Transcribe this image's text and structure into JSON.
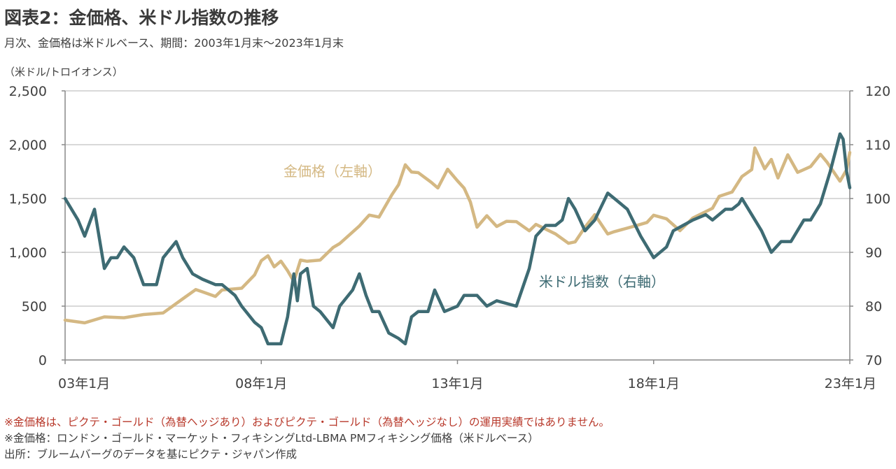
{
  "header": {
    "title": "図表2：金価格、米ドル指数の推移",
    "subtitle": "月次、金価格は米ドルベース、期間：2003年1月末～2023年1月末",
    "unit_label": "（米ドル/トロイオンス）"
  },
  "notes": {
    "note1": "※金価格は、ピクテ・ゴールド（為替ヘッジあり）およびピクテ・ゴールド（為替ヘッジなし）の運用実績ではありません。",
    "note2": "※金価格：ロンドン・ゴールド・マーケット・フィキシングLtd-LBMA PMフィキシング価格（米ドルベース）",
    "note3": "出所：ブルームバーグのデータを基にピクテ・ジャパン作成"
  },
  "colors": {
    "gold": "#d4b883",
    "usd": "#3e6b73",
    "grid": "#d9d9d9",
    "axis": "#888888",
    "note_red": "#b8392b"
  },
  "chart_data": {
    "type": "line",
    "x_ticks": [
      "03年1月",
      "08年1月",
      "13年1月",
      "18年1月",
      "23年1月"
    ],
    "left_axis": {
      "ticks": [
        "0",
        "500",
        "1,000",
        "1,500",
        "2,000",
        "2,500"
      ],
      "ylim": [
        0,
        2500
      ]
    },
    "right_axis": {
      "ticks": [
        "70",
        "80",
        "90",
        "100",
        "110",
        "120"
      ],
      "ylim": [
        70,
        120
      ]
    },
    "grid": true,
    "series": [
      {
        "name": "金価格（左軸）",
        "axis": "left",
        "values": [
          [
            2003.0,
            370
          ],
          [
            2003.5,
            345
          ],
          [
            2004.0,
            400
          ],
          [
            2004.5,
            392
          ],
          [
            2005.0,
            422
          ],
          [
            2005.5,
            437
          ],
          [
            2006.0,
            568
          ],
          [
            2006.33,
            654
          ],
          [
            2006.5,
            633
          ],
          [
            2006.83,
            590
          ],
          [
            2007.0,
            650
          ],
          [
            2007.5,
            666
          ],
          [
            2007.83,
            790
          ],
          [
            2008.0,
            923
          ],
          [
            2008.17,
            968
          ],
          [
            2008.33,
            865
          ],
          [
            2008.5,
            918
          ],
          [
            2008.67,
            830
          ],
          [
            2008.83,
            730
          ],
          [
            2009.0,
            928
          ],
          [
            2009.17,
            917
          ],
          [
            2009.5,
            928
          ],
          [
            2009.83,
            1045
          ],
          [
            2010.0,
            1081
          ],
          [
            2010.5,
            1245
          ],
          [
            2010.75,
            1346
          ],
          [
            2011.0,
            1327
          ],
          [
            2011.33,
            1536
          ],
          [
            2011.5,
            1628
          ],
          [
            2011.67,
            1813
          ],
          [
            2011.83,
            1746
          ],
          [
            2012.0,
            1740
          ],
          [
            2012.33,
            1651
          ],
          [
            2012.5,
            1598
          ],
          [
            2012.75,
            1772
          ],
          [
            2013.0,
            1664
          ],
          [
            2013.17,
            1597
          ],
          [
            2013.33,
            1467
          ],
          [
            2013.5,
            1234
          ],
          [
            2013.75,
            1340
          ],
          [
            2014.0,
            1240
          ],
          [
            2014.25,
            1288
          ],
          [
            2014.5,
            1285
          ],
          [
            2014.83,
            1200
          ],
          [
            2015.0,
            1260
          ],
          [
            2015.5,
            1171
          ],
          [
            2015.83,
            1084
          ],
          [
            2016.0,
            1097
          ],
          [
            2016.25,
            1233
          ],
          [
            2016.5,
            1350
          ],
          [
            2016.83,
            1171
          ],
          [
            2017.0,
            1192
          ],
          [
            2017.5,
            1242
          ],
          [
            2017.83,
            1277
          ],
          [
            2018.0,
            1345
          ],
          [
            2018.33,
            1311
          ],
          [
            2018.67,
            1201
          ],
          [
            2019.0,
            1319
          ],
          [
            2019.5,
            1409
          ],
          [
            2019.67,
            1520
          ],
          [
            2020.0,
            1560
          ],
          [
            2020.25,
            1704
          ],
          [
            2020.5,
            1768
          ],
          [
            2020.58,
            1970
          ],
          [
            2020.83,
            1776
          ],
          [
            2021.0,
            1863
          ],
          [
            2021.17,
            1691
          ],
          [
            2021.42,
            1906
          ],
          [
            2021.67,
            1743
          ],
          [
            2022.0,
            1797
          ],
          [
            2022.25,
            1911
          ],
          [
            2022.42,
            1837
          ],
          [
            2022.75,
            1661
          ],
          [
            2022.92,
            1768
          ],
          [
            2023.0,
            1928
          ]
        ]
      },
      {
        "name": "米ドル指数（右軸）",
        "axis": "right",
        "values": [
          [
            2003.0,
            100
          ],
          [
            2003.33,
            96
          ],
          [
            2003.5,
            93
          ],
          [
            2003.75,
            98
          ],
          [
            2004.0,
            87
          ],
          [
            2004.17,
            89
          ],
          [
            2004.33,
            89
          ],
          [
            2004.5,
            91
          ],
          [
            2004.75,
            89
          ],
          [
            2005.0,
            84
          ],
          [
            2005.33,
            84
          ],
          [
            2005.5,
            89
          ],
          [
            2005.83,
            92
          ],
          [
            2006.0,
            89
          ],
          [
            2006.25,
            86
          ],
          [
            2006.5,
            85
          ],
          [
            2006.83,
            84
          ],
          [
            2007.0,
            84
          ],
          [
            2007.33,
            82
          ],
          [
            2007.5,
            80
          ],
          [
            2007.83,
            77
          ],
          [
            2008.0,
            76
          ],
          [
            2008.17,
            73
          ],
          [
            2008.33,
            73
          ],
          [
            2008.5,
            73
          ],
          [
            2008.67,
            78
          ],
          [
            2008.83,
            86
          ],
          [
            2008.92,
            81
          ],
          [
            2009.0,
            86
          ],
          [
            2009.17,
            87
          ],
          [
            2009.33,
            80
          ],
          [
            2009.5,
            79
          ],
          [
            2009.83,
            76
          ],
          [
            2010.0,
            80
          ],
          [
            2010.33,
            83
          ],
          [
            2010.5,
            86
          ],
          [
            2010.67,
            82
          ],
          [
            2010.83,
            79
          ],
          [
            2011.0,
            79
          ],
          [
            2011.25,
            75
          ],
          [
            2011.5,
            74
          ],
          [
            2011.67,
            73
          ],
          [
            2011.83,
            78
          ],
          [
            2012.0,
            79
          ],
          [
            2012.25,
            79
          ],
          [
            2012.42,
            83
          ],
          [
            2012.67,
            79
          ],
          [
            2013.0,
            80
          ],
          [
            2013.17,
            82
          ],
          [
            2013.5,
            82
          ],
          [
            2013.75,
            80
          ],
          [
            2014.0,
            81
          ],
          [
            2014.5,
            80
          ],
          [
            2014.83,
            87
          ],
          [
            2015.0,
            93
          ],
          [
            2015.25,
            95
          ],
          [
            2015.5,
            95
          ],
          [
            2015.67,
            96
          ],
          [
            2015.83,
            100
          ],
          [
            2016.0,
            98
          ],
          [
            2016.25,
            94
          ],
          [
            2016.5,
            96
          ],
          [
            2016.83,
            101
          ],
          [
            2017.0,
            100
          ],
          [
            2017.33,
            98
          ],
          [
            2017.67,
            93
          ],
          [
            2018.0,
            89
          ],
          [
            2018.33,
            91
          ],
          [
            2018.5,
            94
          ],
          [
            2018.75,
            95
          ],
          [
            2019.0,
            96
          ],
          [
            2019.33,
            97
          ],
          [
            2019.5,
            96
          ],
          [
            2019.83,
            98
          ],
          [
            2020.0,
            98
          ],
          [
            2020.17,
            99
          ],
          [
            2020.25,
            100
          ],
          [
            2020.5,
            97
          ],
          [
            2020.75,
            94
          ],
          [
            2021.0,
            90
          ],
          [
            2021.25,
            92
          ],
          [
            2021.5,
            92
          ],
          [
            2021.83,
            96
          ],
          [
            2022.0,
            96
          ],
          [
            2022.25,
            99
          ],
          [
            2022.5,
            105
          ],
          [
            2022.75,
            112
          ],
          [
            2022.83,
            111
          ],
          [
            2022.92,
            105
          ],
          [
            2023.0,
            102
          ]
        ]
      }
    ],
    "annotations": [
      {
        "text": "金価格（左軸）",
        "series": 0
      },
      {
        "text": "米ドル指数（右軸）",
        "series": 1
      }
    ]
  }
}
